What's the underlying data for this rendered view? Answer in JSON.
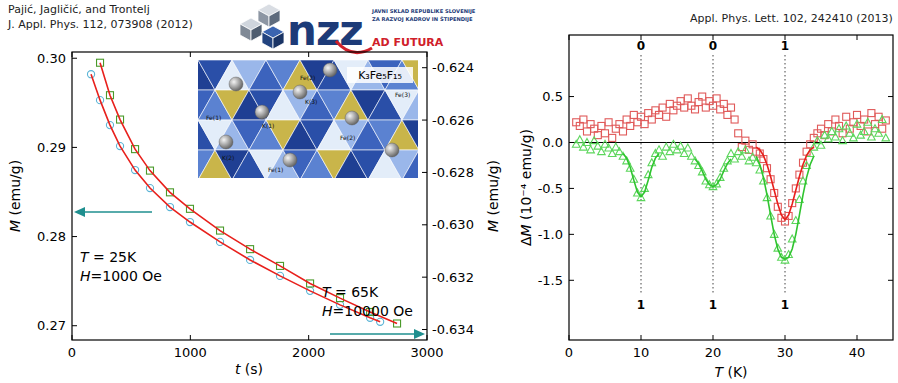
{
  "header": {
    "authors": "Pajić, Jagličić, and Trontelj",
    "left_citation": "J. Appl. Phys. 112, 073908 (2012)",
    "right_citation": "Appl. Phys. Lett. 102, 242410 (2013)",
    "logo": {
      "name": "nzz",
      "lines": [
        "JAVNI SKLAD REPUBLIKE SLOVENIJE",
        "ZA RAZVOJ KADROV IN ŠTIPENDIJE"
      ],
      "tagline": "AD FUTURA"
    }
  },
  "chart_data": [
    {
      "type": "scatter",
      "x_label": "t (s)",
      "y_label": "M (emu/g)",
      "y2_label": "M (emu/g)",
      "xlim": [
        0,
        3000
      ],
      "xticks": [
        0,
        1000,
        2000,
        3000
      ],
      "ylim": [
        0.2684,
        0.3007
      ],
      "yticks": [
        0.27,
        0.28,
        0.29,
        {
          "value": 0.3,
          "label": "0.30"
        }
      ],
      "y2lim": [
        -0.6344,
        -0.6234
      ],
      "y2ticks": [
        -0.634,
        -0.632,
        {
          "value": -0.63,
          "label": "-0.630"
        },
        -0.628,
        -0.626,
        -0.624
      ],
      "series": [
        {
          "type": "scatter",
          "marker": "circle",
          "color": "#5ab4d6",
          "x": [
            161,
            237,
            321,
            406,
            533,
            659,
            828,
            997,
            1251,
            1505,
            1758,
            2012,
            2265,
            2519,
            2604
          ],
          "values": [
            0.29821,
            0.2953,
            0.2925,
            0.29015,
            0.28746,
            0.28544,
            0.28331,
            0.28163,
            0.2794,
            0.27738,
            0.27559,
            0.27391,
            0.27234,
            0.27089,
            0.27044
          ]
        },
        {
          "type": "line",
          "line_style": "solid",
          "color": "#e8201c",
          "x": [
            161,
            237,
            321,
            406,
            533,
            659,
            828,
            997,
            1251,
            1505,
            1758,
            2012,
            2265,
            2519,
            2604
          ],
          "values": [
            0.29821,
            0.2953,
            0.2925,
            0.29015,
            0.28746,
            0.28544,
            0.28331,
            0.28163,
            0.2794,
            0.27738,
            0.27559,
            0.27391,
            0.27234,
            0.27089,
            0.27044
          ]
        },
        {
          "type": "scatter",
          "marker": "square",
          "color": "#4a9a2a",
          "axis": "y2",
          "x": [
            237,
            321,
            406,
            533,
            659,
            828,
            997,
            1251,
            1505,
            1758,
            2012,
            2265,
            2519,
            2747
          ],
          "values": [
            -0.62381,
            -0.62505,
            -0.62598,
            -0.62711,
            -0.62793,
            -0.62876,
            -0.62939,
            -0.63022,
            -0.63093,
            -0.63157,
            -0.63224,
            -0.6328,
            -0.63333,
            -0.63377
          ]
        },
        {
          "type": "line",
          "line_style": "solid",
          "color": "#e8201c",
          "axis": "y2",
          "x": [
            237,
            321,
            406,
            533,
            659,
            828,
            997,
            1251,
            1505,
            1758,
            2012,
            2265,
            2519,
            2747
          ],
          "values": [
            -0.62381,
            -0.62505,
            -0.62598,
            -0.62711,
            -0.62793,
            -0.62876,
            -0.62939,
            -0.63022,
            -0.63093,
            -0.63157,
            -0.63224,
            -0.6328,
            -0.63333,
            -0.63377
          ]
        }
      ],
      "annotations": [
        "T = 25K",
        "H=1000 Oe",
        "T = 65K",
        "H=10000 Oe"
      ],
      "inset": {
        "title": "K₃Fe₅F₁₅",
        "labels": [
          "Fe(3)",
          "Fe(2)",
          "K(3)",
          "Fe(1)",
          "K(1)",
          "Fe(2)",
          "K(2)",
          "Fe(1)"
        ]
      }
    },
    {
      "type": "scatter",
      "x_label": "T (K)",
      "y_label": "ΔM (10⁻⁴ emu/g)",
      "xlim": [
        0,
        45
      ],
      "xticks": [
        0,
        10,
        20,
        30,
        40
      ],
      "ylim": [
        -2.15,
        1.17
      ],
      "yticks": [
        -1.5,
        {
          "value": -1,
          "label": "-1.0"
        },
        -0.5,
        {
          "value": 0,
          "label": "0.0"
        },
        0.5
      ],
      "x": [
        1,
        1.5,
        2,
        2.5,
        3,
        3.5,
        4,
        4.5,
        5,
        5.5,
        6,
        6.5,
        7,
        7.5,
        8,
        8.5,
        9,
        9.5,
        10,
        10.5,
        11,
        11.5,
        12,
        12.5,
        13,
        13.5,
        14,
        14.5,
        15,
        15.5,
        16,
        16.5,
        17,
        17.5,
        18,
        18.5,
        19,
        19.5,
        20,
        20.5,
        21,
        21.5,
        22,
        22.5,
        23,
        23.5,
        24,
        24.5,
        25,
        25.5,
        26,
        26.5,
        27,
        27.5,
        28,
        28.5,
        29,
        29.5,
        30,
        30.5,
        31,
        31.5,
        32,
        32.5,
        33,
        33.5,
        34,
        34.5,
        35,
        35.5,
        36,
        36.5,
        37,
        37.5,
        38,
        38.5,
        39,
        39.5,
        40,
        40.5,
        41,
        41.5,
        42,
        42.5,
        43,
        43.5,
        44
      ],
      "series": [
        {
          "type": "scatter",
          "marker": "square",
          "color": "#e05a5a",
          "values": [
            0.22,
            0.18,
            0.25,
            0.12,
            0.2,
            0.15,
            0.08,
            0.18,
            0.1,
            0.22,
            0.05,
            0.15,
            0.2,
            0.12,
            0.25,
            0.18,
            0.3,
            0.22,
            0.28,
            0.2,
            0.32,
            0.25,
            0.35,
            0.3,
            0.38,
            0.28,
            0.42,
            0.35,
            0.4,
            0.45,
            0.38,
            0.48,
            0.4,
            0.36,
            0.44,
            0.5,
            0.38,
            0.45,
            0.4,
            0.48,
            0.36,
            0.42,
            0.3,
            0.38,
            0.25,
            0.1,
            -0.05,
            0.02,
            -0.08,
            -0.02,
            -0.1,
            -0.12,
            -0.18,
            -0.28,
            -0.4,
            -0.55,
            -0.7,
            -0.82,
            -0.86,
            -0.8,
            -0.66,
            -0.5,
            -0.35,
            -0.22,
            -0.1,
            -0.02,
            0.05,
            0.1,
            0.15,
            0.08,
            0.2,
            0.12,
            0.25,
            0.18,
            0.1,
            0.28,
            0.15,
            0.22,
            0.3,
            0.18,
            0.25,
            0.12,
            0.32,
            0.2,
            0.28,
            0.15,
            0.24
          ]
        },
        {
          "type": "scatter",
          "marker": "triangle",
          "color": "#5cd65c",
          "values": [
            -0.02,
            0.03,
            -0.05,
            0,
            -0.08,
            0.02,
            -0.04,
            -0.1,
            -0.02,
            -0.06,
            -0.12,
            -0.05,
            -0.1,
            -0.15,
            -0.2,
            -0.28,
            -0.4,
            -0.55,
            -0.6,
            -0.5,
            -0.35,
            -0.22,
            -0.12,
            -0.08,
            -0.15,
            -0.05,
            -0.1,
            -0.02,
            -0.08,
            -0.04,
            -0.12,
            -0.06,
            -0.15,
            -0.2,
            -0.25,
            -0.32,
            -0.42,
            -0.46,
            -0.48,
            -0.45,
            -0.38,
            -0.28,
            -0.2,
            -0.12,
            -0.18,
            -0.1,
            -0.15,
            -0.08,
            -0.2,
            -0.16,
            -0.22,
            -0.3,
            -0.42,
            -0.6,
            -0.8,
            -1.0,
            -1.15,
            -1.25,
            -1.28,
            -1.22,
            -1.05,
            -0.85,
            -0.62,
            -0.42,
            -0.25,
            -0.12,
            -0.05,
            0.02,
            -0.03,
            0.08,
            0.04,
            0.12,
            0.06,
            0.15,
            0.02,
            0.18,
            0.1,
            0.05,
            0.2,
            0.08,
            0.12,
            0.22,
            0.06,
            0.15,
            0.1,
            0.25,
            0.05
          ]
        },
        {
          "type": "line",
          "line_style": "solid",
          "color": "#e8201c",
          "x": [
            26,
            26.5,
            27,
            27.5,
            28,
            28.5,
            29,
            29.5,
            30,
            30.5,
            31,
            31.5,
            32,
            32.5,
            33,
            33.5,
            34
          ],
          "values": [
            -0.05,
            -0.08,
            -0.14,
            -0.24,
            -0.37,
            -0.52,
            -0.67,
            -0.79,
            -0.84,
            -0.79,
            -0.67,
            -0.52,
            -0.37,
            -0.24,
            -0.14,
            -0.08,
            -0.05
          ]
        },
        {
          "type": "line",
          "line_style": "solid",
          "color": "#2fc42f",
          "x": [
            7.5,
            8,
            8.5,
            9,
            9.5,
            10,
            10.5,
            11,
            11.5,
            12,
            12.5,
            15,
            17.5,
            18,
            18.5,
            19,
            19.5,
            20,
            20.5,
            21,
            21.5,
            22,
            22.5,
            24.5,
            26,
            26.5,
            27,
            27.5,
            28,
            28.5,
            29,
            29.5,
            30,
            30.5,
            31,
            31.5,
            32,
            32.5,
            33,
            33.5,
            34
          ],
          "values": [
            -0.12,
            -0.17,
            -0.27,
            -0.41,
            -0.54,
            -0.59,
            -0.54,
            -0.41,
            -0.27,
            -0.17,
            -0.12,
            null,
            -0.18,
            -0.23,
            -0.31,
            -0.4,
            -0.46,
            -0.48,
            -0.46,
            -0.4,
            -0.31,
            -0.23,
            -0.18,
            null,
            -0.15,
            -0.24,
            -0.38,
            -0.57,
            -0.79,
            -1.0,
            -1.16,
            -1.25,
            -1.27,
            -1.25,
            -1.16,
            -1.0,
            -0.79,
            -0.57,
            -0.38,
            -0.24,
            -0.15
          ]
        }
      ],
      "hlines": [
        0
      ],
      "vlines": [
        {
          "x": 10,
          "top": "0",
          "bottom": "1"
        },
        {
          "x": 20,
          "top": "0",
          "bottom": "1"
        },
        {
          "x": 30,
          "top": "1",
          "bottom": "1"
        }
      ]
    }
  ]
}
